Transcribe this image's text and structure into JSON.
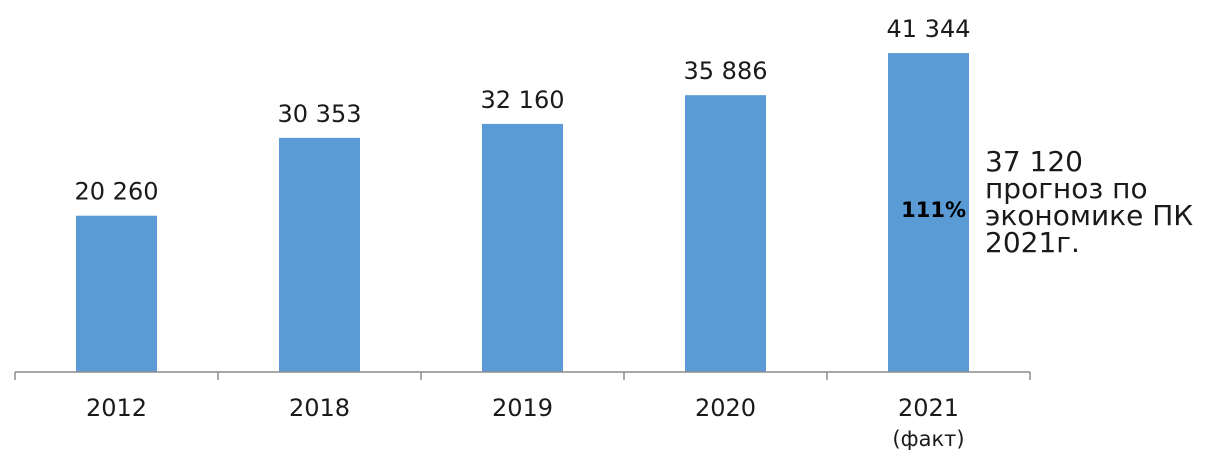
{
  "chart_data": {
    "type": "bar",
    "categories": [
      "2012",
      "2018",
      "2019",
      "2020",
      "2021"
    ],
    "category_sublabels": [
      "",
      "",
      "",
      "",
      "(факт)"
    ],
    "values": [
      20260,
      30353,
      32160,
      35886,
      41344
    ],
    "value_labels": [
      "20 260",
      "30 353",
      "32 160",
      "35 886",
      "41 344"
    ],
    "inbar_annotation": {
      "index": 4,
      "text": "111%"
    },
    "side_annotation": "37 120\nпрогноз по\nэкономике ПК\n2021г.",
    "ylim": [
      0,
      42000
    ],
    "grid": false,
    "bar_color": "#5b9bd5",
    "axis_color": "#8c8c8c"
  }
}
